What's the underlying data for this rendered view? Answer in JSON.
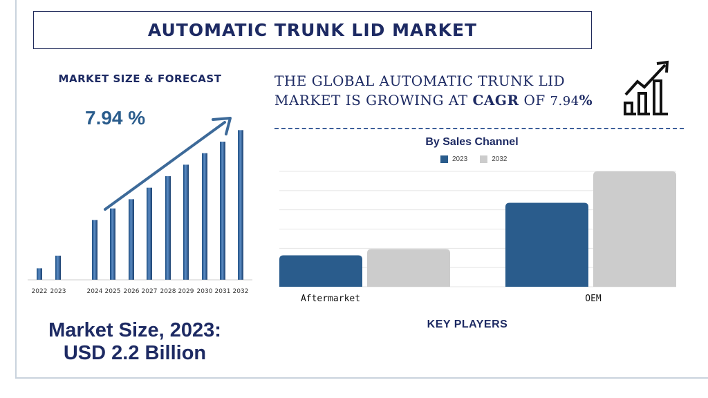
{
  "title": "AUTOMATIC TRUNK LID MARKET",
  "left_panel": {
    "heading": "MARKET SIZE & FORECAST",
    "cagr_label": "7.94 %",
    "market_size_line1": "Market Size, 2023:",
    "market_size_line2": "USD 2.2 Billion"
  },
  "headline": {
    "line1": "THE GLOBAL AUTOMATIC TRUNK LID",
    "line2_prefix": "MARKET IS GROWING AT ",
    "cagr_word": "CAGR",
    "of_word": " OF ",
    "cagr_value": "7.94",
    "percent": "%"
  },
  "bottom": {
    "key_players": "KEY PLAYERS"
  },
  "colors": {
    "navy": "#1d2a63",
    "bar_blue": "#2a5c8c",
    "bar_gray": "#cccccc"
  },
  "icons": [
    "growth-chart-icon"
  ],
  "chart_data": [
    {
      "type": "bar",
      "title": "",
      "categories": [
        "2022",
        "2023",
        "2024",
        "2025",
        "2026",
        "2027",
        "2028",
        "2029",
        "2030",
        "2031",
        "2032"
      ],
      "values": [
        1.0,
        2.1,
        5.2,
        6.2,
        7.0,
        8.0,
        9.0,
        10.0,
        11.0,
        12.0,
        13.0
      ],
      "ylim": [
        0,
        13.5
      ],
      "note_trend_arrow": true
    },
    {
      "type": "bar",
      "title": "By Sales Channel",
      "categories": [
        "Aftermarket",
        "OEM"
      ],
      "series": [
        {
          "name": "2023",
          "values": [
            0.6,
            1.6
          ]
        },
        {
          "name": "2032",
          "values": [
            0.72,
            2.2
          ]
        }
      ],
      "ylim": [
        0,
        2.2
      ],
      "grid": true,
      "legend_position": "top-center"
    }
  ]
}
